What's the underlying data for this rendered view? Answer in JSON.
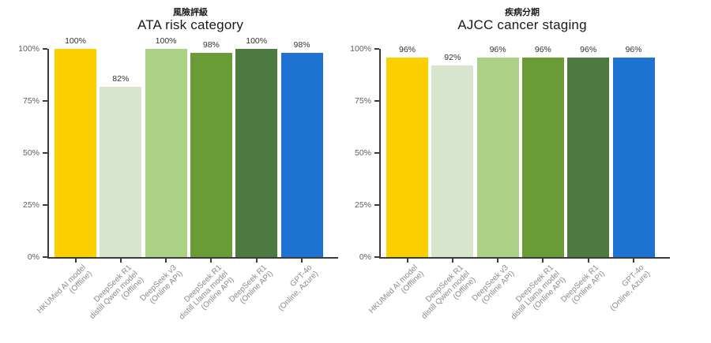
{
  "style": {
    "background": "#FFFFFF",
    "axis_color": "#3C3C3C",
    "y_tick_label_color": "#606060",
    "x_tick_label_color": "#8A8A8A",
    "value_label_color": "#333333",
    "title_color": "#1A1A1A"
  },
  "chart_data": [
    {
      "type": "bar",
      "subtitle": "風險評級",
      "title": "ATA risk category",
      "categories": [
        "HKUMed AI model\n(Offline)",
        "DeepSeek R1\ndistill Qwen model\n(Offline)",
        "DeepSeek v3\n(Online API)",
        "DeepSeek R1\ndistill Llama model\n(Online API)",
        "DeepSeek R1\n(Online API)",
        "GPT-4o\n(Online, Azure)"
      ],
      "values": [
        100,
        82,
        100,
        98,
        100,
        98
      ],
      "value_labels": [
        "100%",
        "82%",
        "100%",
        "98%",
        "100%",
        "98%"
      ],
      "bar_colors": [
        "#FCD000",
        "#D8E6D0",
        "#ABD284",
        "#699B36",
        "#4C7A41",
        "#1E73D2"
      ],
      "y_ticks": [
        "0%",
        "25%",
        "50%",
        "75%",
        "100%"
      ],
      "ylim": [
        0,
        100
      ],
      "xlabel": "",
      "ylabel": "",
      "grid": false,
      "legend": false
    },
    {
      "type": "bar",
      "subtitle": "疾病分期",
      "title": "AJCC cancer staging",
      "categories": [
        "HKUMed AI model\n(Offline)",
        "DeepSeek R1\ndistill Qwen model\n(Offline)",
        "DeepSeek v3\n(Online API)",
        "DeepSeek R1\ndistill Llama model\n(Online API)",
        "DeepSeek R1\n(Online API)",
        "GPT-4o\n(Online, Azure)"
      ],
      "values": [
        96,
        92,
        96,
        96,
        96,
        96
      ],
      "value_labels": [
        "96%",
        "92%",
        "96%",
        "96%",
        "96%",
        "96%"
      ],
      "bar_colors": [
        "#FCD000",
        "#D8E6D0",
        "#ABD284",
        "#699B36",
        "#4C7A41",
        "#1E73D2"
      ],
      "y_ticks": [
        "0%",
        "25%",
        "50%",
        "75%",
        "100%"
      ],
      "ylim": [
        0,
        100
      ],
      "xlabel": "",
      "ylabel": "",
      "grid": false,
      "legend": false
    }
  ]
}
